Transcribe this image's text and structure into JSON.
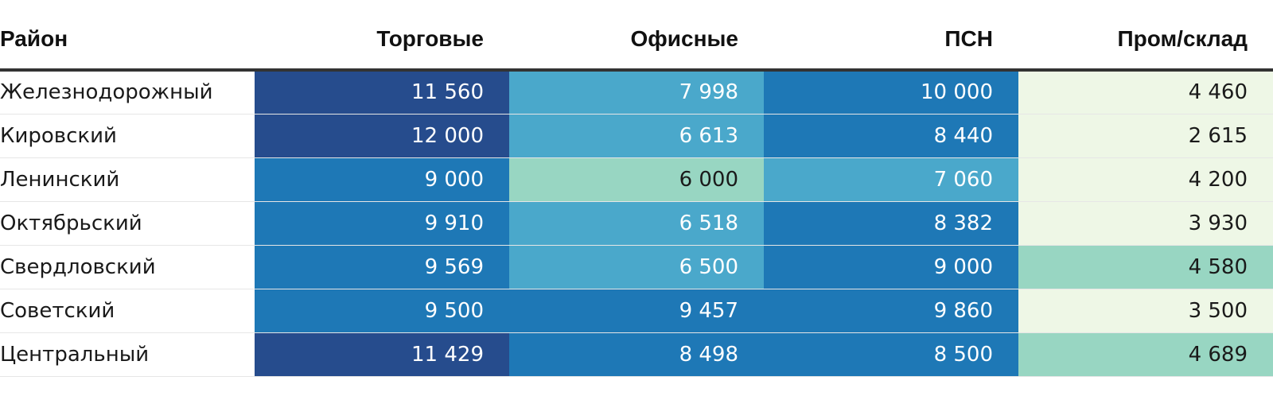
{
  "chart_data": {
    "type": "table",
    "columns": [
      "Район",
      "Торговые",
      "Офисные",
      "ПСН",
      "Пром/склад"
    ],
    "rows": [
      {
        "name": "Железнодорожный",
        "values": [
          "11 560",
          "7 998",
          "10 000",
          "4 460"
        ],
        "levels": [
          4,
          2,
          3,
          0
        ]
      },
      {
        "name": "Кировский",
        "values": [
          "12 000",
          "6 613",
          "8 440",
          "2 615"
        ],
        "levels": [
          4,
          2,
          3,
          0
        ]
      },
      {
        "name": "Ленинский",
        "values": [
          "9 000",
          "6 000",
          "7 060",
          "4 200"
        ],
        "levels": [
          3,
          1,
          2,
          0
        ]
      },
      {
        "name": "Октябрьский",
        "values": [
          "9 910",
          "6 518",
          "8 382",
          "3 930"
        ],
        "levels": [
          3,
          2,
          3,
          0
        ]
      },
      {
        "name": "Свердловский",
        "values": [
          "9 569",
          "6 500",
          "9 000",
          "4 580"
        ],
        "levels": [
          3,
          2,
          3,
          1
        ]
      },
      {
        "name": "Советский",
        "values": [
          "9 500",
          "9 457",
          "9 860",
          "3 500"
        ],
        "levels": [
          3,
          3,
          3,
          0
        ]
      },
      {
        "name": "Центральный",
        "values": [
          "11 429",
          "8 498",
          "8 500",
          "4 689"
        ],
        "levels": [
          4,
          3,
          3,
          1
        ]
      }
    ]
  },
  "colors": {
    "level_0": "#eef7e6",
    "level_1": "#98d6c2",
    "level_2": "#4aa8cb",
    "level_3": "#1e78b6",
    "level_4": "#264c8d",
    "dark_text": "#1a1a1a",
    "light_text": "#ffffff"
  }
}
